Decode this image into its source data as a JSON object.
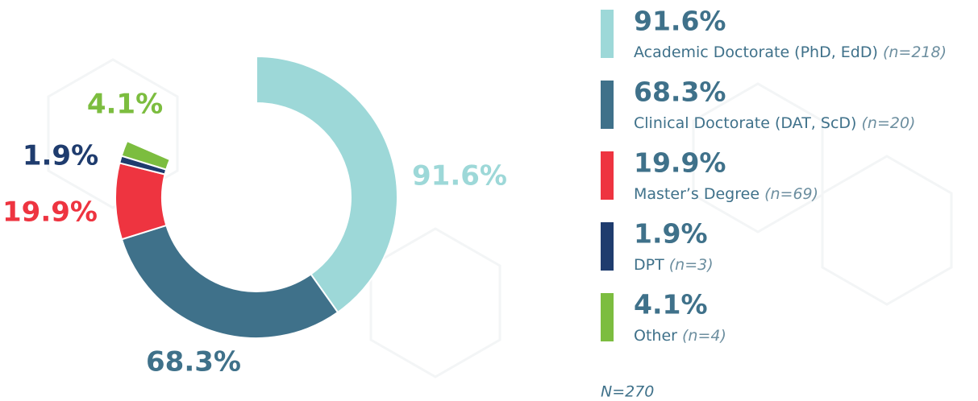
{
  "chart_data": {
    "type": "donut",
    "categories": [
      "Academic Doctorate (PhD, EdD)",
      "Clinical Doctorate (DAT, ScD)",
      "Master’s Degree",
      "DPT",
      "Other"
    ],
    "n_labels": [
      "(n=218)",
      "(n=20)",
      "(n=69)",
      "(n=3)",
      "(n=4)"
    ],
    "values": [
      91.6,
      68.3,
      19.9,
      1.9,
      4.1
    ],
    "value_labels": [
      "91.6%",
      "68.3%",
      "19.9%",
      "1.9%",
      "4.1%"
    ],
    "colors": [
      "#9dd8d8",
      "#3f718a",
      "#ee3440",
      "#1f3c6e",
      "#7cbd3f"
    ],
    "footnote": "N=270"
  }
}
